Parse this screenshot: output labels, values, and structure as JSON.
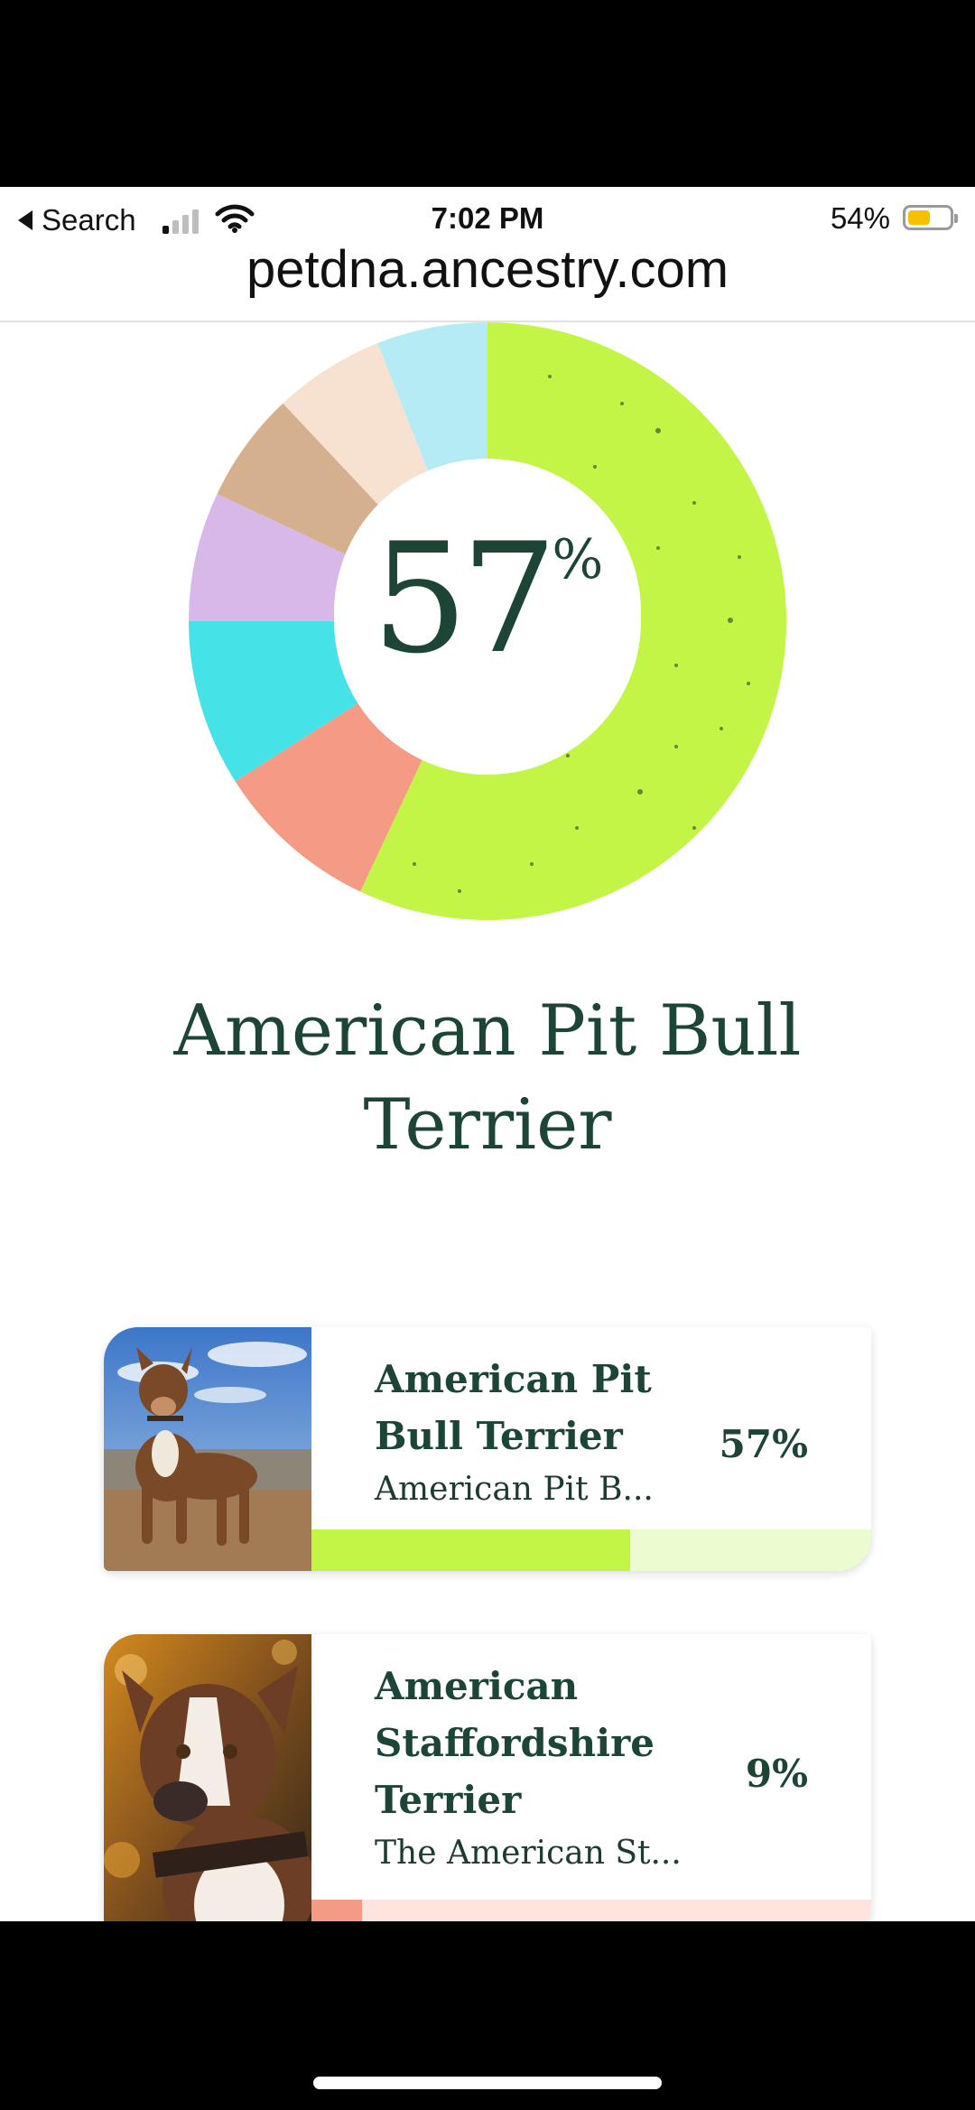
{
  "status_bar": {
    "back_label": "Search",
    "time": "7:02 PM",
    "battery_pct": "54%",
    "battery_level": 0.54
  },
  "browser": {
    "url": "petdna.ancestry.com"
  },
  "ancestry_donut": {
    "center_value": "57",
    "center_unit": "%",
    "segments": [
      {
        "share": 57,
        "color": "#c2f545"
      },
      {
        "share": 9,
        "color": "#f59a85"
      },
      {
        "share": 9,
        "color": "#45e3e8"
      },
      {
        "share": 7,
        "color": "#d8b8e8"
      },
      {
        "share": 6,
        "color": "#d4b08f"
      },
      {
        "share": 6,
        "color": "#f7e2d2"
      },
      {
        "share": 6,
        "color": "#b5ebf5"
      }
    ]
  },
  "top_breed": {
    "title": "American Pit Bull Terrier"
  },
  "breeds": [
    {
      "name": "American Pit Bull Terrier",
      "name_lines": [
        "American Pit",
        "Bull Terrier"
      ],
      "description": "American Pit B...",
      "percent_label": "57%",
      "percent": 57,
      "bar_color": "#c2f545",
      "bar_track_color": "#eafcd0"
    },
    {
      "name": "American Staffordshire Terrier",
      "name_lines": [
        "American",
        "Staffordshire",
        "Terrier"
      ],
      "description": "The American St...",
      "percent_label": "9%",
      "percent": 9,
      "bar_color": "#f59a85",
      "bar_track_color": "#fde4de"
    }
  ]
}
